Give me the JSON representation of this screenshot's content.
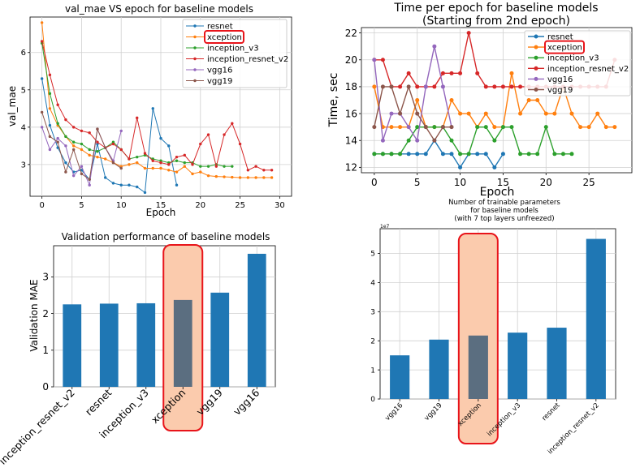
{
  "colors": {
    "resnet": "#1f77b4",
    "xception": "#ff7f0e",
    "inception_v3": "#2ca02c",
    "inception_resnet_v2": "#d62728",
    "vgg16": "#9467bd",
    "vgg19": "#8c564b",
    "bar": "#1f77b4",
    "bar_highlight": "#5b6e80",
    "highlight_stroke": "#e8141a",
    "highlight_fill": "#fbcbad"
  },
  "chart_data": [
    {
      "id": "val_mae",
      "type": "line",
      "title": "val_mae VS epoch for baseline models",
      "xlabel": "Epoch",
      "ylabel": "val_mae",
      "xlim": [
        -1.5,
        31.5
      ],
      "ylim": [
        2.15,
        6.95
      ],
      "xticks": [
        0,
        5,
        10,
        15,
        20,
        25,
        30
      ],
      "yticks": [
        3,
        4,
        5,
        6
      ],
      "grid": true,
      "legend_position": "top-right",
      "highlight_legend": "xception",
      "series": [
        {
          "name": "resnet",
          "key": "resnet",
          "x": [
            0,
            1,
            2,
            3,
            4,
            5,
            6,
            7,
            8,
            9,
            10,
            11,
            12,
            13,
            14,
            15,
            16,
            17
          ],
          "y": [
            5.3,
            4.05,
            3.45,
            3.05,
            2.8,
            2.85,
            2.6,
            3.55,
            2.65,
            2.5,
            2.45,
            2.45,
            2.4,
            2.25,
            4.5,
            3.7,
            3.5,
            2.45
          ]
        },
        {
          "name": "xception",
          "key": "xception",
          "x": [
            0,
            1,
            2,
            3,
            4,
            5,
            6,
            7,
            8,
            9,
            10,
            11,
            12,
            13,
            14,
            15,
            16,
            17,
            18,
            19,
            20,
            21,
            22,
            23,
            24,
            25,
            26,
            27,
            28,
            29
          ],
          "y": [
            6.8,
            4.5,
            4.05,
            3.75,
            3.5,
            3.4,
            3.25,
            3.2,
            3.15,
            3.05,
            2.95,
            3.0,
            3.05,
            2.9,
            2.9,
            2.9,
            2.85,
            2.8,
            2.95,
            2.75,
            2.8,
            2.7,
            2.68,
            2.67,
            2.66,
            2.65,
            2.65,
            2.65,
            2.65,
            2.65
          ]
        },
        {
          "name": "inception_v3",
          "key": "inception_v3",
          "x": [
            0,
            1,
            2,
            3,
            4,
            5,
            6,
            7,
            8,
            9,
            10,
            11,
            12,
            13,
            14,
            15,
            16,
            17,
            18,
            19,
            20,
            21,
            22,
            23,
            24
          ],
          "y": [
            6.25,
            4.9,
            4.1,
            3.75,
            3.6,
            3.55,
            3.4,
            3.35,
            3.45,
            3.6,
            3.4,
            3.15,
            3.2,
            3.25,
            3.15,
            3.1,
            3.05,
            3.1,
            3.05,
            3.05,
            2.95,
            2.95,
            3.0,
            2.95,
            2.95
          ]
        },
        {
          "name": "inception_resnet_v2",
          "key": "inception_resnet_v2",
          "x": [
            0,
            1,
            2,
            3,
            4,
            5,
            6,
            7,
            8,
            9,
            10,
            11,
            12,
            13,
            14,
            15,
            16,
            17,
            18,
            19,
            20,
            21,
            22,
            23,
            24,
            25,
            26,
            27,
            28,
            29
          ],
          "y": [
            6.3,
            5.4,
            4.6,
            4.2,
            4.0,
            3.9,
            3.85,
            3.6,
            3.45,
            3.55,
            3.4,
            3.15,
            4.25,
            3.3,
            3.1,
            3.05,
            3.0,
            3.2,
            3.25,
            3.0,
            3.55,
            3.8,
            2.95,
            3.8,
            4.1,
            3.55,
            2.85,
            2.95,
            2.85,
            2.85
          ]
        },
        {
          "name": "vgg16",
          "key": "vgg16",
          "x": [
            0,
            1,
            2,
            3,
            4,
            5,
            6,
            7,
            8,
            9,
            10
          ],
          "y": [
            4.0,
            3.4,
            3.7,
            3.5,
            2.7,
            2.95,
            2.45,
            3.95,
            3.45,
            3.1,
            3.9
          ]
        },
        {
          "name": "vgg19",
          "key": "vgg19",
          "x": [
            0,
            1,
            2,
            3,
            4,
            5,
            6,
            7,
            8,
            9,
            10
          ],
          "y": [
            4.4,
            3.75,
            3.6,
            2.8,
            3.4,
            2.75,
            2.6,
            3.95,
            3.45,
            3.05,
            2.9
          ]
        }
      ]
    },
    {
      "id": "time_per_epoch",
      "type": "line",
      "title": "Time per epoch for baseline models",
      "subtitle": "(Starting from 2nd epoch)",
      "xlabel": "Epoch",
      "ylabel": "Time, sec",
      "xlim": [
        -1.5,
        30
      ],
      "ylim": [
        11.6,
        22.4
      ],
      "xticks": [
        0,
        5,
        10,
        15,
        20,
        25
      ],
      "yticks": [
        12,
        14,
        16,
        18,
        20,
        22
      ],
      "grid": true,
      "legend_position": "top-right",
      "highlight_legend": "xception",
      "series": [
        {
          "name": "resnet",
          "key": "resnet",
          "x": [
            0,
            1,
            2,
            3,
            4,
            5,
            6,
            7,
            8,
            9,
            10,
            11,
            12,
            13,
            14,
            15
          ],
          "y": [
            13,
            13,
            13,
            13,
            13,
            13,
            13,
            14,
            13,
            13,
            12,
            13,
            13,
            13,
            12,
            13
          ]
        },
        {
          "name": "xception",
          "key": "xception",
          "x": [
            0,
            1,
            2,
            3,
            4,
            5,
            6,
            7,
            8,
            9,
            10,
            11,
            12,
            13,
            14,
            15,
            16,
            17,
            18,
            19,
            20,
            21,
            22,
            23,
            24,
            25,
            26,
            27,
            28
          ],
          "y": [
            18,
            15,
            15,
            15,
            15,
            17,
            15,
            15,
            15,
            17,
            16,
            16,
            15,
            16,
            15,
            15,
            19,
            16,
            17,
            17,
            16,
            16,
            18,
            16,
            15,
            15,
            16,
            15,
            15
          ]
        },
        {
          "name": "inception_v3",
          "key": "inception_v3",
          "x": [
            0,
            1,
            2,
            3,
            4,
            5,
            6,
            7,
            8,
            9,
            10,
            11,
            12,
            13,
            14,
            15,
            16,
            17,
            18,
            19,
            20,
            21,
            22,
            23
          ],
          "y": [
            13,
            13,
            13,
            13,
            14,
            15,
            15,
            15,
            15,
            14,
            13,
            13,
            15,
            15,
            14,
            15,
            15,
            13,
            13,
            13,
            15,
            13,
            13,
            13
          ]
        },
        {
          "name": "inception_resnet_v2",
          "key": "inception_resnet_v2",
          "x": [
            0,
            1,
            2,
            3,
            4,
            5,
            6,
            7,
            8,
            9,
            10,
            11,
            12,
            13,
            14,
            15,
            16,
            17,
            18,
            19,
            20,
            21,
            22,
            23,
            24,
            25,
            26,
            27,
            28
          ],
          "y": [
            20,
            20,
            18,
            18,
            19,
            18,
            18,
            18,
            19,
            19,
            19,
            22,
            19,
            18,
            18,
            18,
            18,
            18,
            18,
            18,
            18,
            18,
            18,
            18,
            18,
            18,
            18,
            18,
            20
          ]
        },
        {
          "name": "vgg16",
          "key": "vgg16",
          "x": [
            0,
            1,
            2,
            3,
            4,
            5,
            6,
            7,
            8,
            9
          ],
          "y": [
            20,
            14,
            16,
            16,
            15,
            14,
            18,
            21,
            18,
            15
          ]
        },
        {
          "name": "vgg19",
          "key": "vgg19",
          "x": [
            0,
            1,
            2,
            3,
            4,
            5,
            6,
            7,
            8,
            9
          ],
          "y": [
            15,
            18,
            18,
            16,
            18,
            16,
            15,
            14,
            15,
            15
          ]
        }
      ]
    },
    {
      "id": "validation_performance",
      "type": "bar",
      "title": "Validation performance of baseline models",
      "ylabel": "Validation MAE",
      "categories": [
        "inception_resnet_v2",
        "resnet",
        "inception_v3",
        "xception",
        "vgg19",
        "vgg16"
      ],
      "values": [
        2.25,
        2.27,
        2.28,
        2.37,
        2.57,
        3.63
      ],
      "highlight": "xception",
      "ylim": [
        0,
        3.85
      ],
      "yticks": [
        0,
        1,
        2,
        3
      ],
      "grid": true
    },
    {
      "id": "trainable_params",
      "type": "bar",
      "title": "Number of trainable parameters",
      "title_line2": "for baseline models",
      "title_line3": "(with 7 top layers unfreezed)",
      "scale_label": "1e7",
      "categories": [
        "vgg16",
        "vgg19",
        "xception",
        "inception_v3",
        "resnet",
        "inception_resnet_v2"
      ],
      "values": [
        1.5,
        2.04,
        2.18,
        2.28,
        2.45,
        5.5
      ],
      "highlight": "xception",
      "ylim": [
        0,
        5.85
      ],
      "yticks": [
        0,
        1,
        2,
        3,
        4,
        5
      ],
      "grid": true
    }
  ]
}
